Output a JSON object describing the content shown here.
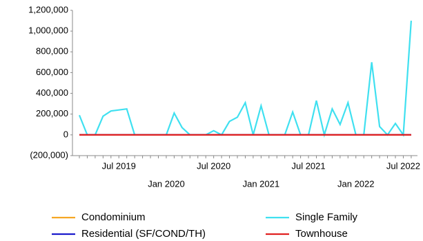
{
  "chart_data": {
    "type": "line",
    "categories": [
      null,
      null,
      null,
      null,
      null,
      "Jul 2019",
      null,
      null,
      null,
      null,
      null,
      "Jan 2020",
      null,
      null,
      null,
      null,
      null,
      "Jul 2020",
      null,
      null,
      null,
      null,
      null,
      "Jan 2021",
      null,
      null,
      null,
      null,
      null,
      "Jul 2021",
      null,
      null,
      null,
      null,
      null,
      "Jan 2022",
      null,
      null,
      null,
      null,
      null,
      "Jul 2022",
      null
    ],
    "series": [
      {
        "name": "Condominium",
        "color": "#f5a623",
        "values": [
          0,
          0,
          0,
          0,
          0,
          0,
          0,
          0,
          0,
          0,
          0,
          0,
          0,
          0,
          0,
          0,
          0,
          0,
          0,
          0,
          0,
          0,
          0,
          0,
          0,
          0,
          0,
          0,
          0,
          0,
          0,
          0,
          0,
          0,
          0,
          0,
          0,
          0,
          0,
          0,
          0,
          0,
          0
        ]
      },
      {
        "name": "Single Family",
        "color": "#3fe0f0",
        "values": [
          190000,
          0,
          0,
          180000,
          230000,
          240000,
          250000,
          0,
          0,
          0,
          0,
          0,
          210000,
          70000,
          0,
          0,
          0,
          40000,
          0,
          130000,
          170000,
          310000,
          0,
          280000,
          0,
          0,
          0,
          220000,
          0,
          0,
          330000,
          0,
          250000,
          100000,
          310000,
          0,
          0,
          700000,
          80000,
          0,
          110000,
          0,
          1100000
        ]
      },
      {
        "name": "Residential (SF/COND/TH)",
        "color": "#1a1acc",
        "values": [
          0,
          0,
          0,
          0,
          0,
          0,
          0,
          0,
          0,
          0,
          0,
          0,
          0,
          0,
          0,
          0,
          0,
          0,
          0,
          0,
          0,
          0,
          0,
          0,
          0,
          0,
          0,
          0,
          0,
          0,
          0,
          0,
          0,
          0,
          0,
          0,
          0,
          0,
          0,
          0,
          0,
          0,
          0
        ]
      },
      {
        "name": "Townhouse",
        "color": "#e02020",
        "values": [
          0,
          0,
          0,
          0,
          0,
          0,
          0,
          0,
          0,
          0,
          0,
          0,
          0,
          0,
          0,
          0,
          0,
          0,
          0,
          0,
          0,
          0,
          0,
          0,
          0,
          0,
          0,
          0,
          0,
          0,
          0,
          0,
          0,
          0,
          0,
          0,
          0,
          0,
          0,
          0,
          0,
          0,
          0
        ]
      }
    ],
    "ylim": [
      -200000,
      1200000
    ],
    "yticks": [
      {
        "value": -200000,
        "label": "(200,000)"
      },
      0,
      {
        "value": 200000,
        "label": "200,000"
      },
      {
        "value": 400000,
        "label": "400,000"
      },
      {
        "value": 600000,
        "label": "600,000"
      },
      {
        "value": 800000,
        "label": "800,000"
      },
      {
        "value": 1000000,
        "label": "1,000,000"
      },
      {
        "value": 1200000,
        "label": "1,200,000"
      }
    ]
  }
}
